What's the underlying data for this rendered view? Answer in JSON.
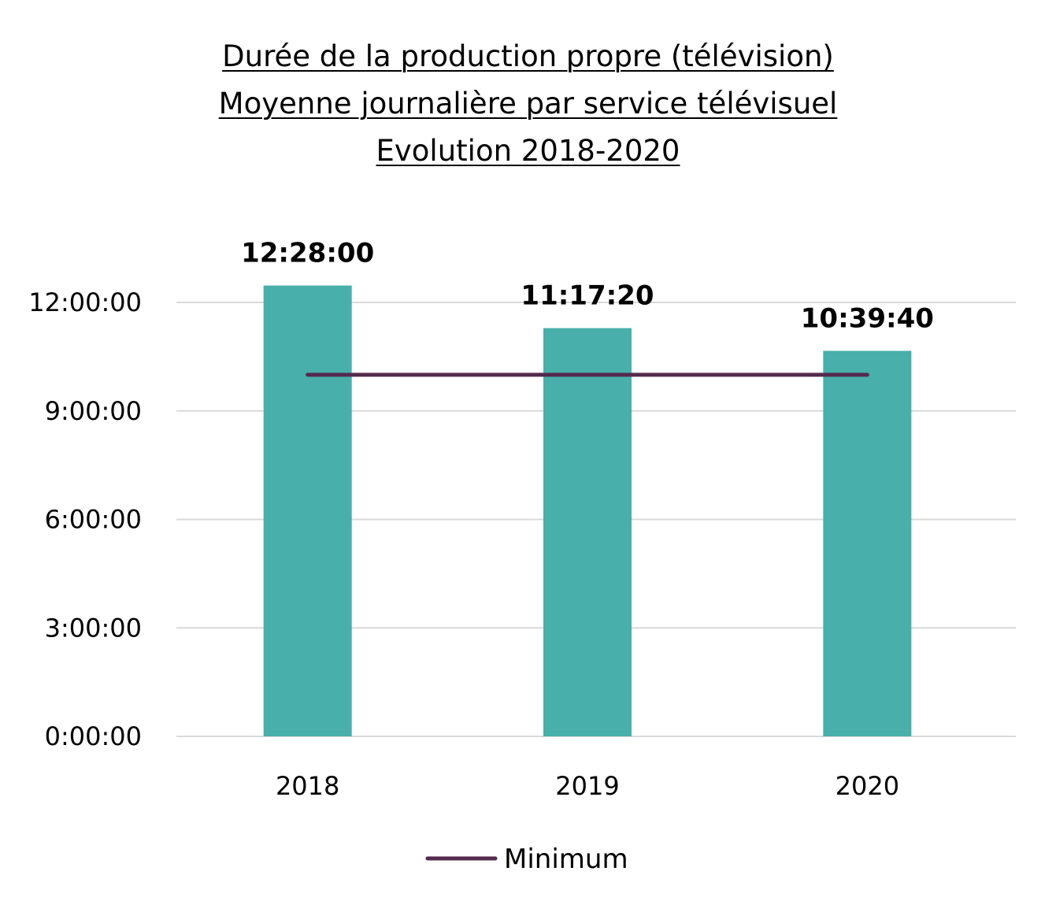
{
  "chart_data": {
    "type": "bar",
    "title_lines": [
      "Durée de la production propre (télévision)",
      "Moyenne journalière par service télévisuel",
      "Evolution 2018-2020"
    ],
    "categories": [
      "2018",
      "2019",
      "2020"
    ],
    "values_hours": [
      12.4667,
      11.2889,
      10.6611
    ],
    "value_labels": [
      "12:28:00",
      "11:17:20",
      "10:39:40"
    ],
    "y_ticks": [
      {
        "value": 0,
        "label": "0:00:00"
      },
      {
        "value": 3,
        "label": "3:00:00"
      },
      {
        "value": 6,
        "label": "6:00:00"
      },
      {
        "value": 9,
        "label": "9:00:00"
      },
      {
        "value": 12,
        "label": "12:00:00"
      }
    ],
    "ylim": [
      0,
      12
    ],
    "grid": true,
    "bar_color": "#48AFAB",
    "line_series": {
      "name": "Minimum",
      "type": "line",
      "values_hours": [
        10,
        10,
        10
      ],
      "color": "#542A4D"
    },
    "legend": {
      "placement": "bottom",
      "entries": [
        "Minimum"
      ]
    }
  }
}
